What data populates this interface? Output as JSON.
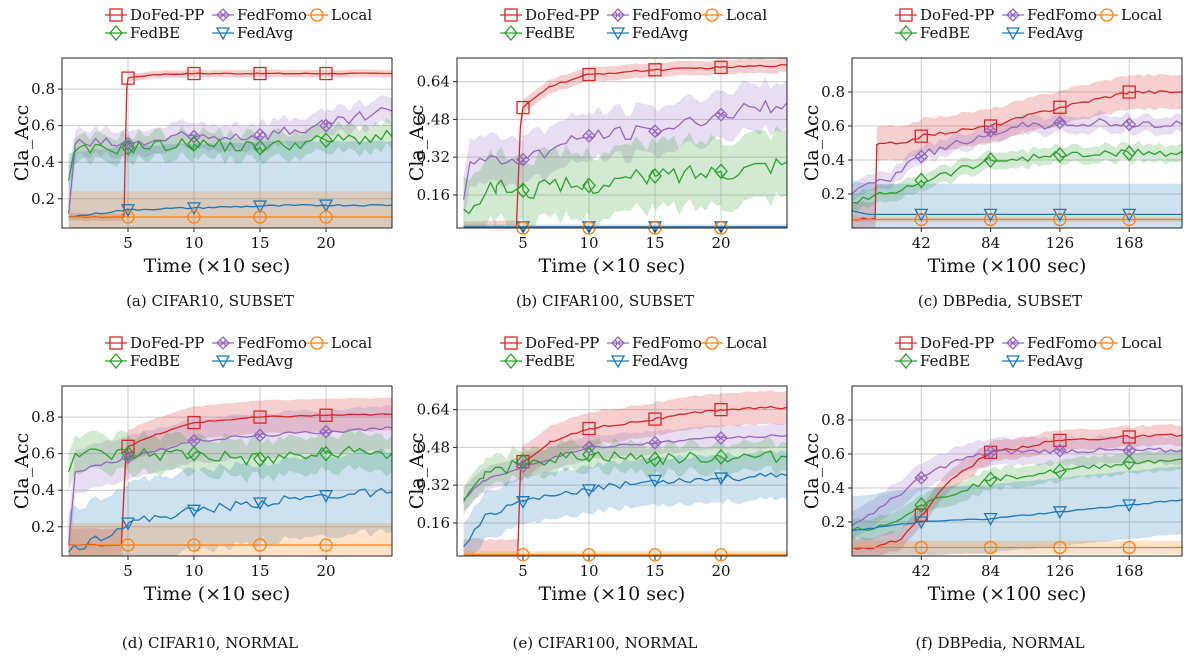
{
  "colors": {
    "DoFed-PP": "#d62728",
    "FedFomo": "#9467bd",
    "Local": "#ff7f0e",
    "FedBE": "#2ca02c",
    "FedAvg": "#1f77b4"
  },
  "legend_labels": {
    "dofed": "DoFed-PP",
    "fedfomo": "FedFomo",
    "local": "Local",
    "fedbe": "FedBE",
    "fedavg": "FedAvg"
  },
  "chart_data": [
    {
      "id": "a",
      "type": "line",
      "caption": "(a) CIFAR10, SUBSET",
      "xlabel": "Time (×10 sec)",
      "ylabel": "Cla_Acc",
      "xlim": [
        0,
        25
      ],
      "ylim": [
        0.04,
        0.97
      ],
      "xticks": [
        5,
        10,
        15,
        20
      ],
      "xtick_labels": [
        "5",
        "10",
        "15",
        "20"
      ],
      "yticks": [
        0.2,
        0.4,
        0.6,
        0.8
      ],
      "ytick_labels": [
        "0.2",
        "0.4",
        "0.6",
        "0.8"
      ],
      "grid": true,
      "legend": "top",
      "series": [
        {
          "name": "DoFed-PP",
          "marker": "square",
          "noise": 0.003,
          "band": 0.02,
          "x": [
            0.5,
            4.7,
            4.9,
            5,
            7,
            10,
            15,
            20,
            25
          ],
          "y": [
            0.1,
            0.1,
            0.8,
            0.86,
            0.88,
            0.885,
            0.885,
            0.885,
            0.885
          ]
        },
        {
          "name": "FedFomo",
          "marker": "x",
          "noise": 0.035,
          "band": 0.07,
          "x": [
            0.5,
            1,
            5,
            10,
            15,
            20,
            25
          ],
          "y": [
            0.12,
            0.5,
            0.5,
            0.54,
            0.55,
            0.6,
            0.68
          ]
        },
        {
          "name": "FedBE",
          "marker": "diamond",
          "noise": 0.035,
          "band": 0.07,
          "x": [
            0.5,
            1,
            5,
            10,
            15,
            20,
            25
          ],
          "y": [
            0.3,
            0.46,
            0.48,
            0.5,
            0.48,
            0.52,
            0.54
          ]
        },
        {
          "name": "FedAvg",
          "marker": "triangle",
          "noise": 0.005,
          "band": 0.35,
          "x": [
            0.5,
            5,
            10,
            15,
            20,
            25
          ],
          "y": [
            0.1,
            0.14,
            0.15,
            0.16,
            0.165,
            0.165
          ]
        },
        {
          "name": "Local",
          "marker": "circle",
          "noise": 0.0,
          "band": 0.14,
          "x": [
            0.5,
            25
          ],
          "y": [
            0.1,
            0.1
          ]
        }
      ]
    },
    {
      "id": "b",
      "type": "line",
      "caption": "(b) CIFAR100, SUBSET",
      "xlabel": "Time (×10 sec)",
      "ylabel": "Cla_Acc",
      "xlim": [
        0,
        25
      ],
      "ylim": [
        0.02,
        0.74
      ],
      "xticks": [
        5,
        10,
        15,
        20
      ],
      "xtick_labels": [
        "5",
        "10",
        "15",
        "20"
      ],
      "yticks": [
        0.16,
        0.32,
        0.48,
        0.64
      ],
      "ytick_labels": [
        "0.16",
        "0.32",
        "0.48",
        "0.64"
      ],
      "grid": true,
      "legend": "top",
      "series": [
        {
          "name": "DoFed-PP",
          "marker": "square",
          "noise": 0.004,
          "band": 0.03,
          "x": [
            0.5,
            4.5,
            4.8,
            5,
            7,
            10,
            15,
            20,
            25
          ],
          "y": [
            0.02,
            0.02,
            0.45,
            0.53,
            0.62,
            0.67,
            0.69,
            0.7,
            0.71
          ]
        },
        {
          "name": "FedFomo",
          "marker": "x",
          "noise": 0.03,
          "band": 0.1,
          "x": [
            0.5,
            1,
            5,
            10,
            15,
            20,
            25
          ],
          "y": [
            0.14,
            0.3,
            0.31,
            0.41,
            0.43,
            0.5,
            0.55
          ]
        },
        {
          "name": "FedBE",
          "marker": "diamond",
          "noise": 0.04,
          "band": 0.14,
          "x": [
            0.5,
            3,
            5,
            10,
            15,
            20,
            25
          ],
          "y": [
            0.1,
            0.2,
            0.18,
            0.2,
            0.24,
            0.26,
            0.3
          ]
        },
        {
          "name": "FedAvg",
          "marker": "triangle",
          "noise": 0.0,
          "band": 0.01,
          "x": [
            0.5,
            25
          ],
          "y": [
            0.025,
            0.025
          ]
        },
        {
          "name": "Local",
          "marker": "circle",
          "noise": 0.0,
          "band": 0.005,
          "x": [
            0.5,
            25
          ],
          "y": [
            0.02,
            0.02
          ]
        }
      ]
    },
    {
      "id": "c",
      "type": "line",
      "caption": "(c) DBPedia, SUBSET",
      "xlabel": "Time (×100 sec)",
      "ylabel": "Cla_Acc",
      "xlim": [
        0,
        200
      ],
      "ylim": [
        0.0,
        1.0
      ],
      "xticks": [
        42,
        84,
        126,
        168
      ],
      "xtick_labels": [
        "42",
        "84",
        "126",
        "168"
      ],
      "yticks": [
        0.2,
        0.4,
        0.6,
        0.8
      ],
      "ytick_labels": [
        "0.2",
        "0.4",
        "0.6",
        "0.8"
      ],
      "grid": true,
      "legend": "top",
      "series": [
        {
          "name": "DoFed-PP",
          "marker": "square",
          "noise": 0.01,
          "band": 0.1,
          "x": [
            0,
            14,
            15,
            30,
            42,
            84,
            126,
            168,
            200
          ],
          "y": [
            0.05,
            0.05,
            0.49,
            0.5,
            0.54,
            0.6,
            0.71,
            0.8,
            0.8
          ]
        },
        {
          "name": "FedFomo",
          "marker": "x",
          "noise": 0.03,
          "band": 0.05,
          "x": [
            0,
            20,
            42,
            84,
            126,
            168,
            200
          ],
          "y": [
            0.2,
            0.28,
            0.42,
            0.57,
            0.62,
            0.61,
            0.61
          ]
        },
        {
          "name": "FedBE",
          "marker": "diamond",
          "noise": 0.025,
          "band": 0.05,
          "x": [
            0,
            20,
            42,
            84,
            126,
            168,
            200
          ],
          "y": [
            0.15,
            0.2,
            0.28,
            0.4,
            0.43,
            0.44,
            0.45
          ]
        },
        {
          "name": "FedAvg",
          "marker": "triangle",
          "noise": 0.0,
          "band": 0.18,
          "x": [
            0,
            10,
            200
          ],
          "y": [
            0.1,
            0.08,
            0.08
          ]
        },
        {
          "name": "Local",
          "marker": "circle",
          "noise": 0.0,
          "band": 0.015,
          "x": [
            0,
            200
          ],
          "y": [
            0.05,
            0.05
          ]
        }
      ]
    },
    {
      "id": "d",
      "type": "line",
      "caption": "(d) CIFAR10, NORMAL",
      "xlabel": "Time (×10 sec)",
      "ylabel": "Cla_Acc",
      "xlim": [
        0,
        25
      ],
      "ylim": [
        0.04,
        0.97
      ],
      "xticks": [
        5,
        10,
        15,
        20
      ],
      "xtick_labels": [
        "5",
        "10",
        "15",
        "20"
      ],
      "yticks": [
        0.2,
        0.4,
        0.6,
        0.8
      ],
      "ytick_labels": [
        "0.2",
        "0.4",
        "0.6",
        "0.8"
      ],
      "grid": true,
      "legend": "top",
      "series": [
        {
          "name": "DoFed-PP",
          "marker": "square",
          "noise": 0.004,
          "band": 0.09,
          "x": [
            0.5,
            4.5,
            4.8,
            5,
            7,
            10,
            15,
            20,
            25
          ],
          "y": [
            0.1,
            0.1,
            0.55,
            0.64,
            0.7,
            0.77,
            0.8,
            0.81,
            0.815
          ]
        },
        {
          "name": "FedFomo",
          "marker": "x",
          "noise": 0.01,
          "band": 0.12,
          "x": [
            0.5,
            1,
            5,
            10,
            15,
            20,
            25
          ],
          "y": [
            0.1,
            0.5,
            0.58,
            0.67,
            0.7,
            0.72,
            0.74
          ]
        },
        {
          "name": "FedBE",
          "marker": "diamond",
          "noise": 0.04,
          "band": 0.1,
          "x": [
            0.5,
            1,
            5,
            10,
            15,
            20,
            25
          ],
          "y": [
            0.5,
            0.6,
            0.6,
            0.6,
            0.57,
            0.6,
            0.6
          ]
        },
        {
          "name": "FedAvg",
          "marker": "triangle",
          "noise": 0.025,
          "band": 0.22,
          "x": [
            0.5,
            5,
            10,
            15,
            20,
            25
          ],
          "y": [
            0.06,
            0.22,
            0.29,
            0.33,
            0.37,
            0.39
          ]
        },
        {
          "name": "Local",
          "marker": "circle",
          "noise": 0.0,
          "band": 0.12,
          "x": [
            0.5,
            25
          ],
          "y": [
            0.1,
            0.1
          ]
        }
      ]
    },
    {
      "id": "e",
      "type": "line",
      "caption": "(e) CIFAR100, NORMAL",
      "xlabel": "Time (×10 sec)",
      "ylabel": "Cla_Acc",
      "xlim": [
        0,
        25
      ],
      "ylim": [
        0.02,
        0.74
      ],
      "xticks": [
        5,
        10,
        15,
        20
      ],
      "xtick_labels": [
        "5",
        "10",
        "15",
        "20"
      ],
      "yticks": [
        0.16,
        0.32,
        0.48,
        0.64
      ],
      "ytick_labels": [
        "0.16",
        "0.32",
        "0.48",
        "0.64"
      ],
      "grid": true,
      "legend": "top",
      "series": [
        {
          "name": "DoFed-PP",
          "marker": "square",
          "noise": 0.006,
          "band": 0.07,
          "x": [
            0.5,
            4.6,
            4.8,
            5,
            7,
            10,
            15,
            20,
            25
          ],
          "y": [
            0.02,
            0.02,
            0.38,
            0.42,
            0.5,
            0.56,
            0.6,
            0.64,
            0.65
          ]
        },
        {
          "name": "FedFomo",
          "marker": "x",
          "noise": 0.006,
          "band": 0.05,
          "x": [
            0.5,
            2,
            5,
            10,
            15,
            20,
            25
          ],
          "y": [
            0.26,
            0.34,
            0.4,
            0.48,
            0.5,
            0.52,
            0.53
          ]
        },
        {
          "name": "FedBE",
          "marker": "diamond",
          "noise": 0.025,
          "band": 0.06,
          "x": [
            0.5,
            2,
            5,
            10,
            15,
            20,
            25
          ],
          "y": [
            0.25,
            0.35,
            0.42,
            0.45,
            0.43,
            0.44,
            0.44
          ]
        },
        {
          "name": "FedAvg",
          "marker": "triangle",
          "noise": 0.015,
          "band": 0.1,
          "x": [
            0.5,
            2,
            5,
            10,
            15,
            20,
            25
          ],
          "y": [
            0.06,
            0.18,
            0.25,
            0.3,
            0.34,
            0.35,
            0.36
          ]
        },
        {
          "name": "Local",
          "marker": "circle",
          "noise": 0.0,
          "band": 0.015,
          "x": [
            0.5,
            25
          ],
          "y": [
            0.025,
            0.025
          ]
        }
      ]
    },
    {
      "id": "f",
      "type": "line",
      "caption": "(f) DBPedia, NORMAL",
      "xlabel": "Time (×100 sec)",
      "ylabel": "Cla_Acc",
      "xlim": [
        0,
        200
      ],
      "ylim": [
        0.0,
        1.0
      ],
      "xticks": [
        42,
        84,
        126,
        168
      ],
      "xtick_labels": [
        "42",
        "84",
        "126",
        "168"
      ],
      "yticks": [
        0.2,
        0.4,
        0.6,
        0.8
      ],
      "ytick_labels": [
        "0.2",
        "0.4",
        "0.6",
        "0.8"
      ],
      "grid": true,
      "legend": "top",
      "series": [
        {
          "name": "DoFed-PP",
          "marker": "square",
          "noise": 0.01,
          "band": 0.06,
          "x": [
            0,
            14,
            30,
            42,
            60,
            84,
            126,
            168,
            200
          ],
          "y": [
            0.05,
            0.05,
            0.1,
            0.24,
            0.45,
            0.61,
            0.68,
            0.7,
            0.71
          ]
        },
        {
          "name": "FedFomo",
          "marker": "x",
          "noise": 0.015,
          "band": 0.08,
          "x": [
            0,
            20,
            42,
            60,
            84,
            126,
            168,
            200
          ],
          "y": [
            0.18,
            0.3,
            0.46,
            0.55,
            0.61,
            0.62,
            0.62,
            0.62
          ]
        },
        {
          "name": "FedBE",
          "marker": "diamond",
          "noise": 0.015,
          "band": 0.06,
          "x": [
            0,
            20,
            42,
            84,
            126,
            168,
            200
          ],
          "y": [
            0.15,
            0.18,
            0.3,
            0.45,
            0.5,
            0.55,
            0.57
          ]
        },
        {
          "name": "FedAvg",
          "marker": "triangle",
          "noise": 0.004,
          "band": 0.2,
          "x": [
            0,
            42,
            84,
            126,
            168,
            200
          ],
          "y": [
            0.15,
            0.2,
            0.22,
            0.26,
            0.3,
            0.33
          ]
        },
        {
          "name": "Local",
          "marker": "circle",
          "noise": 0.0,
          "band": 0.04,
          "x": [
            0,
            200
          ],
          "y": [
            0.05,
            0.05
          ]
        }
      ]
    }
  ]
}
